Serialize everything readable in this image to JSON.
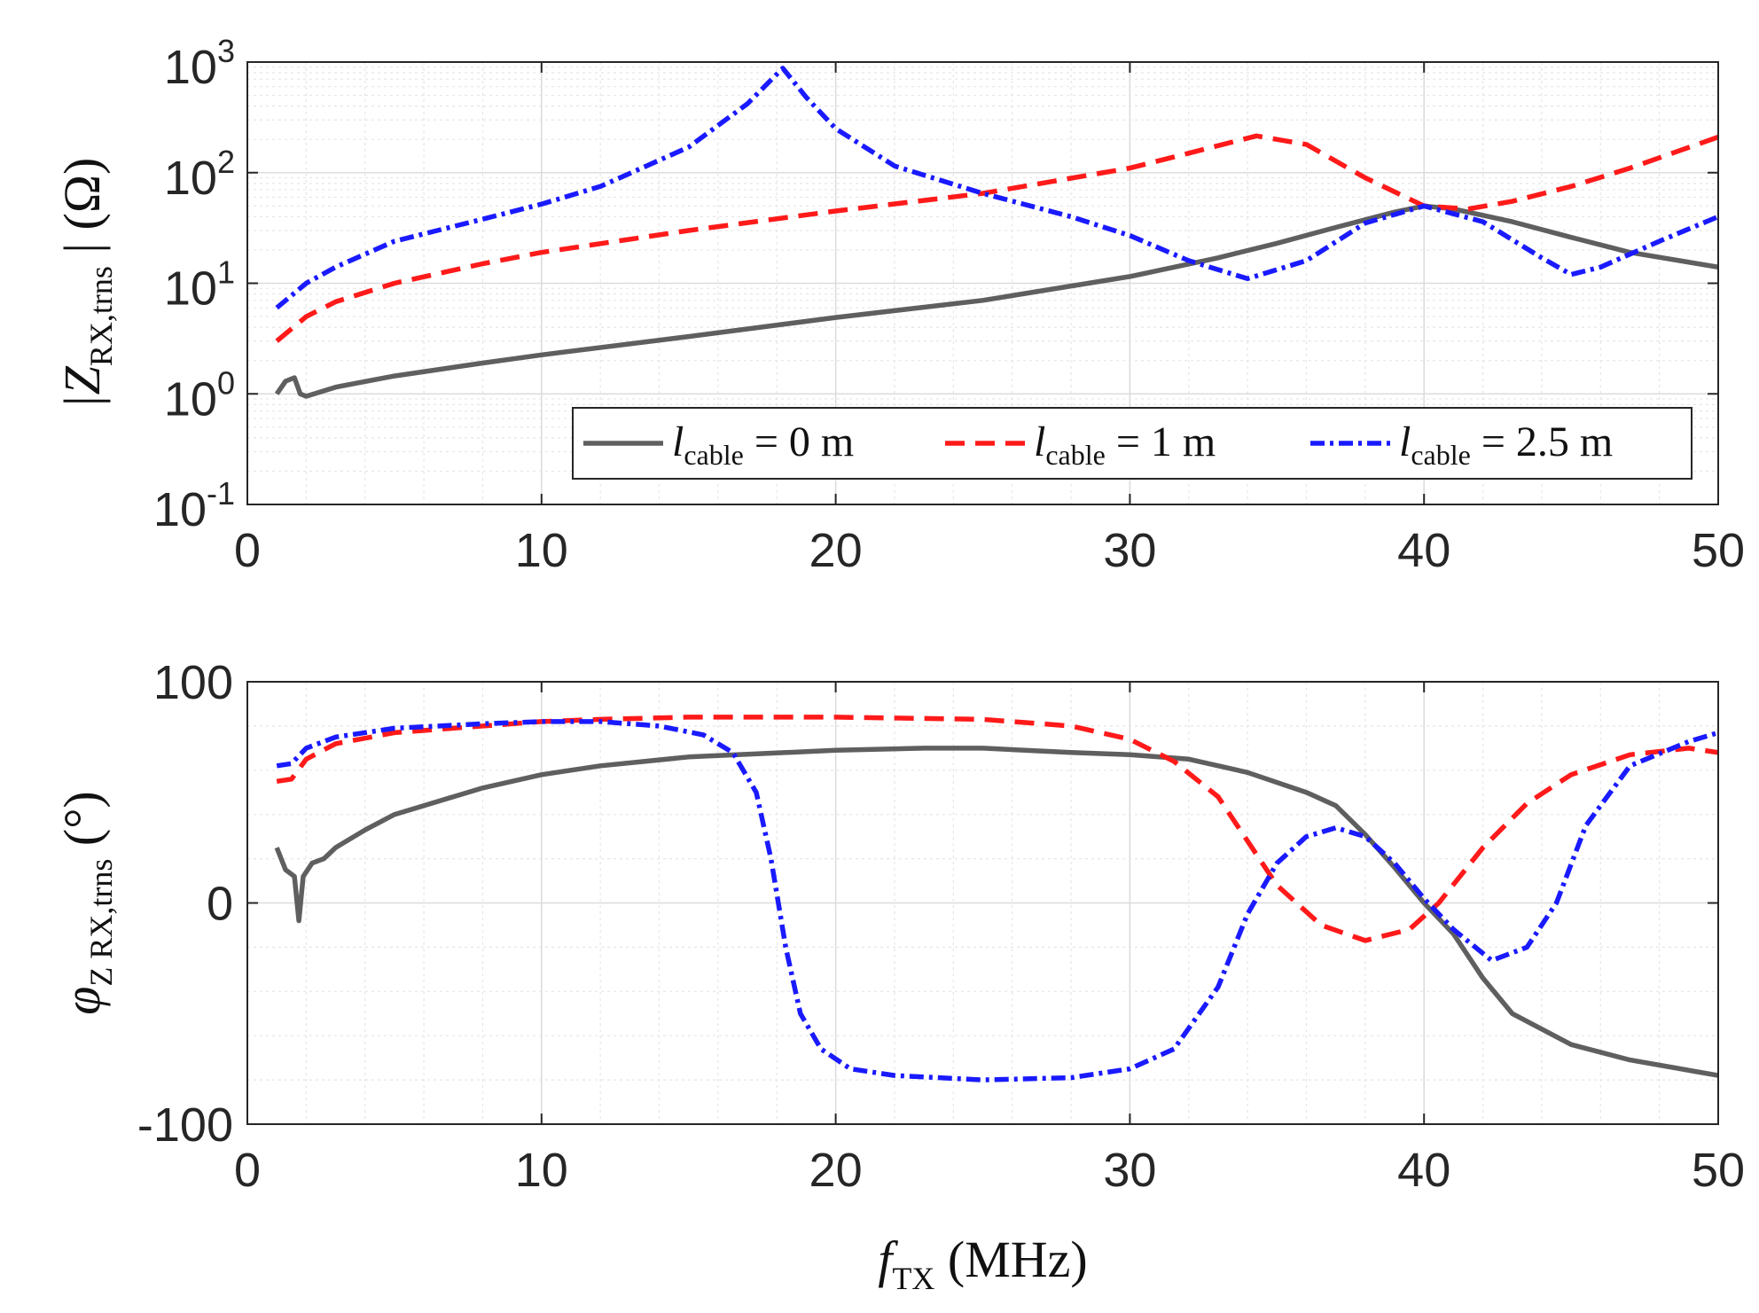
{
  "chart_data": [
    {
      "type": "line",
      "xscale": "linear",
      "yscale": "log",
      "xlim": [
        0,
        50
      ],
      "ylim": [
        0.1,
        1000
      ],
      "grid": true,
      "minor_grid": true,
      "xticks": [
        "0",
        "10",
        "20",
        "30",
        "40",
        "50"
      ],
      "yticks": [
        {
          "base": "10",
          "exp": "-1"
        },
        {
          "base": "10",
          "exp": "0"
        },
        {
          "base": "10",
          "exp": "1"
        },
        {
          "base": "10",
          "exp": "2"
        },
        {
          "base": "10",
          "exp": "3"
        }
      ],
      "ylabel": {
        "text": "|Z",
        "sub": "RX,trns",
        "unit": "| (Ω)"
      },
      "legend": {
        "location": "lower-right",
        "entries": [
          {
            "name": "l",
            "sub": "cable",
            "value": "= 0 m"
          },
          {
            "name": "l",
            "sub": "cable",
            "value": "= 1 m"
          },
          {
            "name": "l",
            "sub": "cable",
            "value": "= 2.5 m"
          }
        ]
      },
      "series": [
        {
          "name": "l_cable = 0 m",
          "color": "#5f5f5f",
          "style": "solid",
          "x": [
            1,
            1.3,
            1.6,
            1.8,
            2,
            3,
            5,
            8,
            10,
            15,
            20,
            25,
            30,
            33,
            35,
            37,
            39,
            40,
            41,
            43,
            45,
            47,
            50
          ],
          "y": [
            1.0,
            1.3,
            1.4,
            1.0,
            0.95,
            1.15,
            1.45,
            1.9,
            2.25,
            3.3,
            4.9,
            7.0,
            11.5,
            17,
            23,
            32,
            44,
            50,
            47,
            36,
            26,
            19,
            14
          ]
        },
        {
          "name": "l_cable = 1 m",
          "color": "#ff1a1a",
          "style": "dashed",
          "x": [
            1,
            2,
            3,
            5,
            8,
            10,
            15,
            20,
            25,
            30,
            32,
            34.3,
            36,
            38,
            40,
            41.5,
            43,
            45,
            47,
            50
          ],
          "y": [
            3.0,
            5.0,
            6.8,
            10,
            15,
            19,
            30,
            45,
            65,
            110,
            150,
            215,
            180,
            90,
            50,
            47,
            55,
            75,
            110,
            210
          ]
        },
        {
          "name": "l_cable = 2.5 m",
          "color": "#1a1aff",
          "style": "dashdot",
          "x": [
            1,
            2,
            3,
            5,
            8,
            10,
            12,
            15,
            17,
            18.2,
            19,
            20,
            22,
            25,
            28,
            30,
            32,
            34,
            36,
            38,
            40,
            42,
            44,
            45,
            46,
            48,
            50
          ],
          "y": [
            6,
            10,
            14,
            24,
            38,
            52,
            75,
            170,
            420,
            880,
            480,
            250,
            115,
            65,
            40,
            27,
            16,
            11,
            16,
            35,
            50,
            36,
            17,
            12,
            14,
            24,
            40
          ]
        }
      ]
    },
    {
      "type": "line",
      "xscale": "linear",
      "yscale": "linear",
      "xlim": [
        0,
        50
      ],
      "ylim": [
        -100,
        100
      ],
      "grid": true,
      "minor_grid": true,
      "xticks": [
        "0",
        "10",
        "20",
        "30",
        "40",
        "50"
      ],
      "yticks": [
        "-100",
        "0",
        "100"
      ],
      "xlabel": {
        "text": "f",
        "sub": "TX",
        "unit": "(MHz)"
      },
      "ylabel": {
        "text": "φ",
        "sub": "Z RX,trns",
        "unit": "(°)"
      },
      "series": [
        {
          "name": "l_cable = 0 m",
          "color": "#5f5f5f",
          "style": "solid",
          "x": [
            1,
            1.3,
            1.6,
            1.75,
            1.9,
            2.2,
            2.6,
            3,
            4,
            5,
            6,
            8,
            10,
            12,
            15,
            20,
            23,
            25,
            28,
            30,
            32,
            34,
            36,
            37,
            38,
            39,
            40,
            41,
            42,
            43,
            45,
            47,
            50
          ],
          "y": [
            25,
            15,
            12,
            -8,
            12,
            18,
            20,
            25,
            33,
            40,
            44,
            52,
            58,
            62,
            66,
            69,
            70,
            70,
            68,
            67,
            65,
            59,
            50,
            44,
            31,
            16,
            0,
            -14,
            -34,
            -50,
            -64,
            -71,
            -78
          ]
        },
        {
          "name": "l_cable = 1 m",
          "color": "#ff1a1a",
          "style": "dashed",
          "x": [
            1,
            1.5,
            2,
            3,
            5,
            8,
            10,
            12,
            15,
            20,
            25,
            28,
            30,
            31.5,
            33,
            35,
            36.5,
            38,
            39.5,
            40.5,
            42,
            43.5,
            45,
            47,
            49,
            50
          ],
          "y": [
            55,
            56,
            65,
            72,
            77,
            80,
            82,
            83,
            84,
            84,
            83,
            80,
            74,
            64,
            48,
            8,
            -10,
            -17,
            -12,
            0,
            25,
            45,
            58,
            67,
            70,
            68
          ]
        },
        {
          "name": "l_cable = 2.5 m",
          "color": "#1a1aff",
          "style": "dashdot",
          "x": [
            1,
            1.5,
            2,
            3,
            5,
            8,
            10,
            12,
            14,
            15.5,
            16.5,
            17.3,
            17.8,
            18.3,
            18.8,
            19.5,
            20.5,
            22,
            25,
            28,
            30,
            31.5,
            33,
            34,
            35,
            36,
            37,
            38,
            39,
            40,
            41,
            42.3,
            43.5,
            44.5,
            45.5,
            47,
            49,
            50
          ],
          "y": [
            62,
            63,
            70,
            75,
            79,
            81,
            82,
            82,
            80,
            76,
            68,
            50,
            20,
            -20,
            -50,
            -66,
            -75,
            -78,
            -80,
            -79,
            -75,
            -66,
            -38,
            -5,
            18,
            30,
            34,
            30,
            18,
            2,
            -12,
            -26,
            -20,
            0,
            35,
            62,
            73,
            77
          ]
        }
      ]
    }
  ]
}
